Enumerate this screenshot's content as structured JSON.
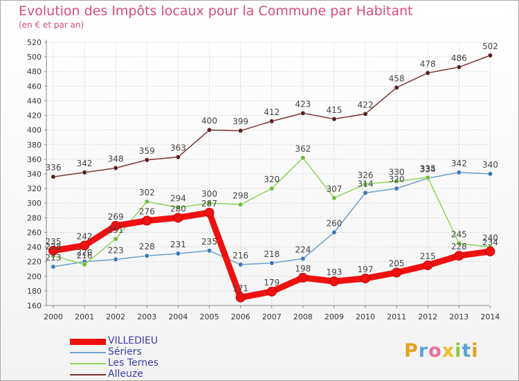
{
  "header": {
    "title": "Evolution des Impôts locaux pour la Commune par Habitant",
    "subtitle": "(en € et par an)"
  },
  "colors": {
    "title": "#d84a76",
    "axis_label": "#333333",
    "grid": "#d8d8d8",
    "axis": "#888888"
  },
  "logo": {
    "text": "Proxiti",
    "letter_colors": [
      "#e8a020",
      "#5fa0d8",
      "#f06a9a",
      "#f0c020",
      "#8cc84b",
      "#5fa0d8",
      "#e8a020"
    ]
  },
  "chart_data": {
    "type": "line",
    "title": "Evolution des Impôts locaux pour la Commune par Habitant",
    "subtitle": "(en € et par an)",
    "xlabel": "",
    "ylabel": "",
    "x": [
      "2000",
      "2001",
      "2002",
      "2003",
      "2004",
      "2005",
      "2006",
      "2007",
      "2008",
      "2009",
      "2010",
      "2011",
      "2012",
      "2013",
      "2014"
    ],
    "ylim": [
      160,
      520
    ],
    "yticks": [
      160,
      180,
      200,
      220,
      240,
      260,
      280,
      300,
      320,
      340,
      360,
      380,
      400,
      420,
      440,
      460,
      480,
      500,
      520
    ],
    "grid": true,
    "legend_position": "bottom-left",
    "series": [
      {
        "name": "VILLEDIEU",
        "color": "#ee1111",
        "marker": "#ee1111",
        "bold": true,
        "values": [
          235,
          242,
          269,
          276,
          280,
          287,
          171,
          179,
          198,
          193,
          197,
          205,
          215,
          228,
          234
        ],
        "labels": [
          "235",
          "242",
          "269",
          "276",
          "280",
          "287",
          "171",
          "179",
          "198",
          "193",
          "197",
          "205",
          "215",
          "228",
          "234"
        ]
      },
      {
        "name": "Sériers",
        "color": "#6d9ecb",
        "marker": "#3d78b8",
        "bold": false,
        "values": [
          213,
          220,
          223,
          228,
          231,
          235,
          216,
          218,
          224,
          260,
          314,
          320,
          334,
          342,
          340
        ],
        "labels": [
          "213",
          "220",
          "223",
          "228",
          "231",
          "235",
          "216",
          "218",
          "224",
          "260",
          "314",
          "320",
          "334",
          "342",
          "340"
        ]
      },
      {
        "name": "Les Ternes",
        "color": "#8ed45a",
        "marker": "#6cbf35",
        "bold": false,
        "values": [
          228,
          216,
          251,
          302,
          294,
          300,
          298,
          320,
          362,
          307,
          326,
          330,
          335,
          245,
          240
        ],
        "labels": [
          "228",
          "216",
          "251",
          "302",
          "294",
          "300",
          "298",
          "320",
          "362",
          "307",
          "326",
          "330",
          "335",
          "245",
          "240"
        ]
      },
      {
        "name": "Alleuze",
        "color": "#7d3333",
        "marker": "#5c1d1d",
        "bold": false,
        "values": [
          336,
          342,
          348,
          359,
          363,
          400,
          399,
          412,
          423,
          415,
          422,
          458,
          478,
          486,
          502
        ],
        "labels": [
          "336",
          "342",
          "348",
          "359",
          "363",
          "400",
          "399",
          "412",
          "423",
          "415",
          "422",
          "458",
          "478",
          "486",
          "502"
        ]
      }
    ]
  }
}
